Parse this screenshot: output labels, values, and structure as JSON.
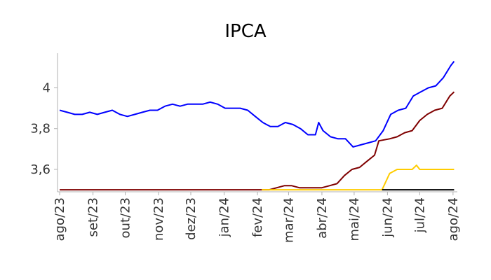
{
  "chart_data": {
    "type": "line",
    "title": "IPCA",
    "xlabel": "",
    "ylabel": "",
    "x_ticks": [
      "ago/23",
      "set/23",
      "out/23",
      "nov/23",
      "dez/23",
      "jan/24",
      "fev/24",
      "mar/24",
      "abr/24",
      "mai/24",
      "jun/24",
      "jul/24",
      "ago/24"
    ],
    "y_ticks": [
      3.6,
      3.8,
      4.0
    ],
    "y_tick_labels": [
      "3,6",
      "3,8",
      "4"
    ],
    "ylim": [
      3.49,
      4.17
    ],
    "xlim": [
      "2023-07-30",
      "2024-08-05"
    ],
    "grid": false,
    "legend": "none",
    "series": [
      {
        "color": "#0000ff",
        "points": [
          [
            "2023-08-01",
            3.89
          ],
          [
            "2023-08-08",
            3.88
          ],
          [
            "2023-08-15",
            3.87
          ],
          [
            "2023-08-22",
            3.87
          ],
          [
            "2023-08-29",
            3.88
          ],
          [
            "2023-09-05",
            3.87
          ],
          [
            "2023-09-12",
            3.88
          ],
          [
            "2023-09-19",
            3.89
          ],
          [
            "2023-09-26",
            3.87
          ],
          [
            "2023-10-03",
            3.86
          ],
          [
            "2023-10-10",
            3.87
          ],
          [
            "2023-10-17",
            3.88
          ],
          [
            "2023-10-24",
            3.89
          ],
          [
            "2023-10-31",
            3.89
          ],
          [
            "2023-11-07",
            3.91
          ],
          [
            "2023-11-14",
            3.92
          ],
          [
            "2023-11-21",
            3.91
          ],
          [
            "2023-11-28",
            3.92
          ],
          [
            "2023-12-05",
            3.92
          ],
          [
            "2023-12-12",
            3.92
          ],
          [
            "2023-12-19",
            3.93
          ],
          [
            "2023-12-26",
            3.92
          ],
          [
            "2024-01-02",
            3.9
          ],
          [
            "2024-01-09",
            3.9
          ],
          [
            "2024-01-16",
            3.9
          ],
          [
            "2024-01-23",
            3.89
          ],
          [
            "2024-01-30",
            3.86
          ],
          [
            "2024-02-06",
            3.83
          ],
          [
            "2024-02-13",
            3.81
          ],
          [
            "2024-02-20",
            3.81
          ],
          [
            "2024-02-27",
            3.83
          ],
          [
            "2024-03-05",
            3.82
          ],
          [
            "2024-03-12",
            3.8
          ],
          [
            "2024-03-19",
            3.77
          ],
          [
            "2024-03-26",
            3.77
          ],
          [
            "2024-03-29",
            3.83
          ],
          [
            "2024-04-02",
            3.79
          ],
          [
            "2024-04-09",
            3.76
          ],
          [
            "2024-04-16",
            3.75
          ],
          [
            "2024-04-23",
            3.75
          ],
          [
            "2024-04-30",
            3.71
          ],
          [
            "2024-05-07",
            3.72
          ],
          [
            "2024-05-14",
            3.73
          ],
          [
            "2024-05-21",
            3.74
          ],
          [
            "2024-05-28",
            3.79
          ],
          [
            "2024-06-04",
            3.87
          ],
          [
            "2024-06-11",
            3.89
          ],
          [
            "2024-06-18",
            3.9
          ],
          [
            "2024-06-25",
            3.96
          ],
          [
            "2024-07-02",
            3.98
          ],
          [
            "2024-07-09",
            4.0
          ],
          [
            "2024-07-16",
            4.01
          ],
          [
            "2024-07-23",
            4.05
          ],
          [
            "2024-07-30",
            4.11
          ],
          [
            "2024-08-02",
            4.13
          ]
        ]
      },
      {
        "color": "#7f0000",
        "points": [
          [
            "2023-08-01",
            3.5
          ],
          [
            "2024-02-05",
            3.5
          ],
          [
            "2024-02-12",
            3.5
          ],
          [
            "2024-02-19",
            3.51
          ],
          [
            "2024-02-26",
            3.52
          ],
          [
            "2024-03-04",
            3.52
          ],
          [
            "2024-03-11",
            3.51
          ],
          [
            "2024-03-18",
            3.51
          ],
          [
            "2024-03-25",
            3.51
          ],
          [
            "2024-04-01",
            3.51
          ],
          [
            "2024-04-08",
            3.52
          ],
          [
            "2024-04-15",
            3.53
          ],
          [
            "2024-04-22",
            3.57
          ],
          [
            "2024-04-29",
            3.6
          ],
          [
            "2024-05-06",
            3.61
          ],
          [
            "2024-05-13",
            3.64
          ],
          [
            "2024-05-20",
            3.67
          ],
          [
            "2024-05-24",
            3.74
          ],
          [
            "2024-06-03",
            3.75
          ],
          [
            "2024-06-10",
            3.76
          ],
          [
            "2024-06-17",
            3.78
          ],
          [
            "2024-06-24",
            3.79
          ],
          [
            "2024-07-01",
            3.84
          ],
          [
            "2024-07-08",
            3.87
          ],
          [
            "2024-07-15",
            3.89
          ],
          [
            "2024-07-22",
            3.9
          ],
          [
            "2024-07-29",
            3.96
          ],
          [
            "2024-08-02",
            3.98
          ]
        ]
      },
      {
        "color": "#ffcc00",
        "points": [
          [
            "2024-02-05",
            3.5
          ],
          [
            "2024-05-27",
            3.5
          ],
          [
            "2024-06-03",
            3.58
          ],
          [
            "2024-06-10",
            3.6
          ],
          [
            "2024-06-17",
            3.6
          ],
          [
            "2024-06-24",
            3.6
          ],
          [
            "2024-06-28",
            3.62
          ],
          [
            "2024-07-01",
            3.6
          ],
          [
            "2024-07-15",
            3.6
          ],
          [
            "2024-08-02",
            3.6
          ]
        ]
      },
      {
        "color": "#000000",
        "points": [
          [
            "2024-05-27",
            3.5
          ],
          [
            "2024-08-02",
            3.5
          ]
        ]
      }
    ]
  }
}
